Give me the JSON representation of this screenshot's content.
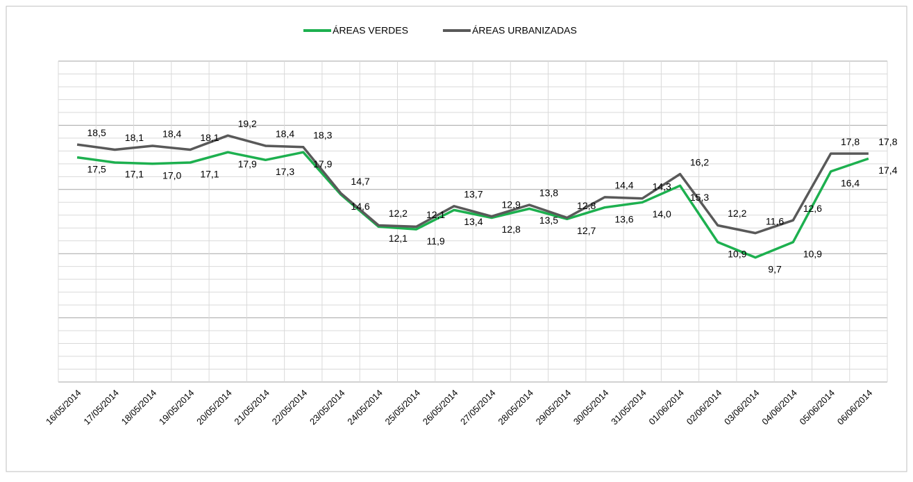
{
  "chart_data": {
    "type": "line",
    "categories": [
      "16/05/2014",
      "17/05/2014",
      "18/05/2014",
      "19/05/2014",
      "20/05/2014",
      "21/05/2014",
      "22/05/2014",
      "23/05/2014",
      "24/05/2014",
      "25/05/2014",
      "26/05/2014",
      "27/05/2014",
      "28/05/2014",
      "29/05/2014",
      "30/05/2014",
      "31/05/2014",
      "01/06/2014",
      "02/06/2014",
      "03/06/2014",
      "04/06/2014",
      "05/06/2014",
      "06/06/2014"
    ],
    "series": [
      {
        "name": "ÁREAS VERDES",
        "color": "#1db04f",
        "values": [
          17.5,
          17.1,
          17.0,
          17.1,
          17.9,
          17.3,
          17.9,
          14.6,
          12.1,
          11.9,
          13.4,
          12.8,
          13.5,
          12.7,
          13.6,
          14.0,
          15.3,
          10.9,
          9.7,
          10.9,
          16.4,
          17.4
        ],
        "value_labels": [
          "17,5",
          "17,1",
          "17,0",
          "17,1",
          "17,9",
          "17,3",
          "17,9",
          "14,6",
          "12,1",
          "11,9",
          "13,4",
          "12,8",
          "13,5",
          "12,7",
          "13,6",
          "14,0",
          "15,3",
          "10,9",
          "9,7",
          "10,9",
          "16,4",
          "17,4"
        ]
      },
      {
        "name": "ÁREAS URBANIZADAS",
        "color": "#595959",
        "values": [
          18.5,
          18.1,
          18.4,
          18.1,
          19.2,
          18.4,
          18.3,
          14.7,
          12.2,
          12.1,
          13.7,
          12.9,
          13.8,
          12.8,
          14.4,
          14.3,
          16.2,
          12.2,
          11.6,
          12.6,
          17.8,
          17.8
        ],
        "value_labels": [
          "18,5",
          "18,1",
          "18,4",
          "18,1",
          "19,2",
          "18,4",
          "18,3",
          "14,7",
          "12,2",
          "12,1",
          "13,7",
          "12,9",
          "13,8",
          "12,8",
          "14,4",
          "14,3",
          "16,2",
          "12,2",
          "11,6",
          "12,6",
          "17,8",
          "17,8"
        ]
      }
    ],
    "ylim": [
      0,
      25
    ],
    "yticks": [
      0,
      1,
      2,
      3,
      4,
      5,
      6,
      7,
      8,
      9,
      10,
      11,
      12,
      13,
      14,
      15,
      16,
      17,
      18,
      19,
      20,
      21,
      22,
      23,
      24,
      25
    ],
    "grid": true,
    "legend": "top"
  }
}
